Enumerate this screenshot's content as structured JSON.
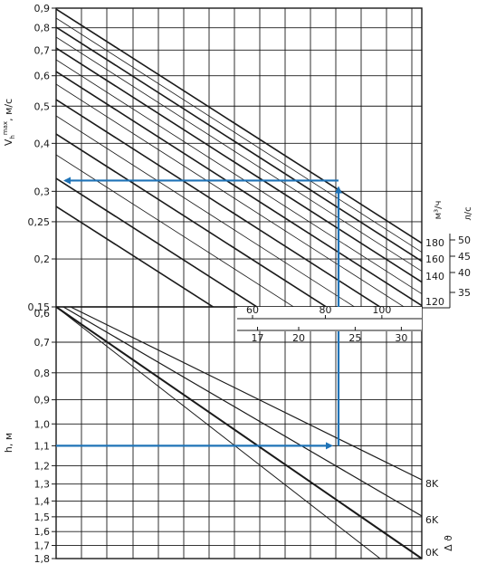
{
  "chart_data": [
    {
      "type": "line",
      "panel": "top",
      "ylabel_main": "V",
      "ylabel_sub": "h",
      "ylabel_sup": "max",
      "ylabel_unit": ", м/с",
      "y_scale": "log",
      "ylim": [
        0.15,
        0.9
      ],
      "y_ticks": [
        {
          "v": 0.9,
          "t": "0,9"
        },
        {
          "v": 0.8,
          "t": "0,8"
        },
        {
          "v": 0.7,
          "t": "0,7"
        },
        {
          "v": 0.6,
          "t": "0,6"
        },
        {
          "v": 0.5,
          "t": "0,5"
        },
        {
          "v": 0.4,
          "t": "0,4"
        },
        {
          "v": 0.3,
          "t": "0,3"
        },
        {
          "v": 0.25,
          "t": "0,25"
        },
        {
          "v": 0.2,
          "t": "0,2"
        },
        {
          "v": 0.15,
          "t": "0,15"
        }
      ],
      "x_scale_m3h": {
        "label": "м³/ч",
        "ticks": [
          {
            "v": 60,
            "t": "60"
          },
          {
            "v": 80,
            "t": "80"
          },
          {
            "v": 100,
            "t": "100"
          }
        ]
      },
      "x_scale_ls": {
        "ticks": [
          {
            "v": 17,
            "t": "17"
          },
          {
            "v": 20,
            "t": "20"
          },
          {
            "v": 25,
            "t": "25"
          },
          {
            "v": 30,
            "t": "30"
          }
        ]
      },
      "right_scale_m3h": {
        "label": "м³/ч",
        "ticks": [
          {
            "v": 180,
            "t": "180"
          },
          {
            "v": 160,
            "t": "160"
          },
          {
            "v": 140,
            "t": "140"
          },
          {
            "v": 120,
            "t": "120"
          }
        ]
      },
      "right_scale_ls": {
        "label": "л/с",
        "ticks": [
          {
            "v": 50,
            "t": "50"
          },
          {
            "v": 45,
            "t": "45"
          },
          {
            "v": 40,
            "t": "40"
          },
          {
            "v": 35,
            "t": "35"
          }
        ]
      },
      "line_family": "diagonal lines, one per flow rate",
      "read_value": 0.32
    },
    {
      "type": "line",
      "panel": "bottom",
      "ylabel": "h, м",
      "ylim": [
        0.6,
        1.8
      ],
      "y_ticks": [
        {
          "v": 0.6,
          "t": "0,6"
        },
        {
          "v": 0.7,
          "t": "0,7"
        },
        {
          "v": 0.8,
          "t": "0,8"
        },
        {
          "v": 0.9,
          "t": "0,9"
        },
        {
          "v": 1.0,
          "t": "1,0"
        },
        {
          "v": 1.1,
          "t": "1,1"
        },
        {
          "v": 1.2,
          "t": "1,2"
        },
        {
          "v": 1.3,
          "t": "1,3"
        },
        {
          "v": 1.4,
          "t": "1,4"
        },
        {
          "v": 1.5,
          "t": "1,5"
        },
        {
          "v": 1.6,
          "t": "1,6"
        },
        {
          "v": 1.7,
          "t": "1,7"
        },
        {
          "v": 1.8,
          "t": "1,8"
        }
      ],
      "series_axis_label": "Δ ϑ",
      "series": [
        {
          "name": "8K"
        },
        {
          "name": "6K"
        },
        {
          "name": "0K"
        }
      ],
      "read_value": 1.1
    }
  ],
  "colors": {
    "grid": "#1a1a1a",
    "lines": "#1a1a1a",
    "example": "#1f73b7"
  }
}
